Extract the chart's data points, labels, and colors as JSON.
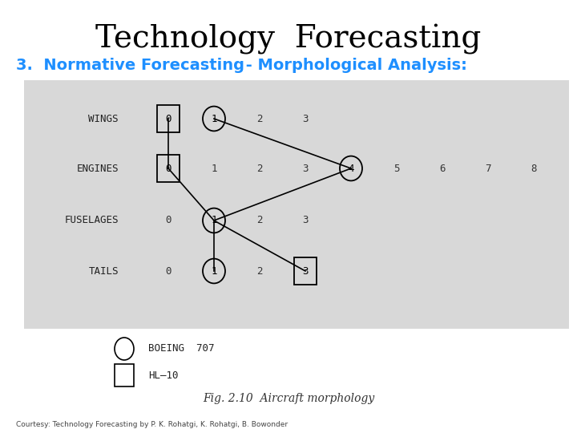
{
  "title": "Technology  Forecasting",
  "subtitle_bold": "3.  Normative Forecasting",
  "subtitle_rest": " - Morphological Analysis:",
  "title_color": "#000000",
  "subtitle_color": "#1e8fff",
  "bg_color": "#ffffff",
  "footer": "Courtesy: Technology Forecasting by P. K. Rohatgi, K. Rohatgi, B. Bowonder",
  "rows": [
    "WINGS",
    "ENGINES",
    "FUSELAGES",
    "TAILS"
  ],
  "row_values": [
    [
      0,
      1,
      2,
      3
    ],
    [
      0,
      1,
      2,
      3,
      4,
      5,
      6,
      7,
      8
    ],
    [
      0,
      1,
      2,
      3
    ],
    [
      0,
      1,
      2,
      3
    ]
  ],
  "circled": {
    "WINGS": 1,
    "ENGINES": 4,
    "FUSELAGES": 1,
    "TAILS": 1
  },
  "boxed": {
    "WINGS": 0,
    "ENGINES": 0,
    "TAILS": 3
  },
  "fig_caption": "Fig. 2.10  Aircraft morphology",
  "diagram_bg": "#d8d8d8",
  "legend_boeing": "BOEING  707",
  "legend_hl10": "HL—10"
}
